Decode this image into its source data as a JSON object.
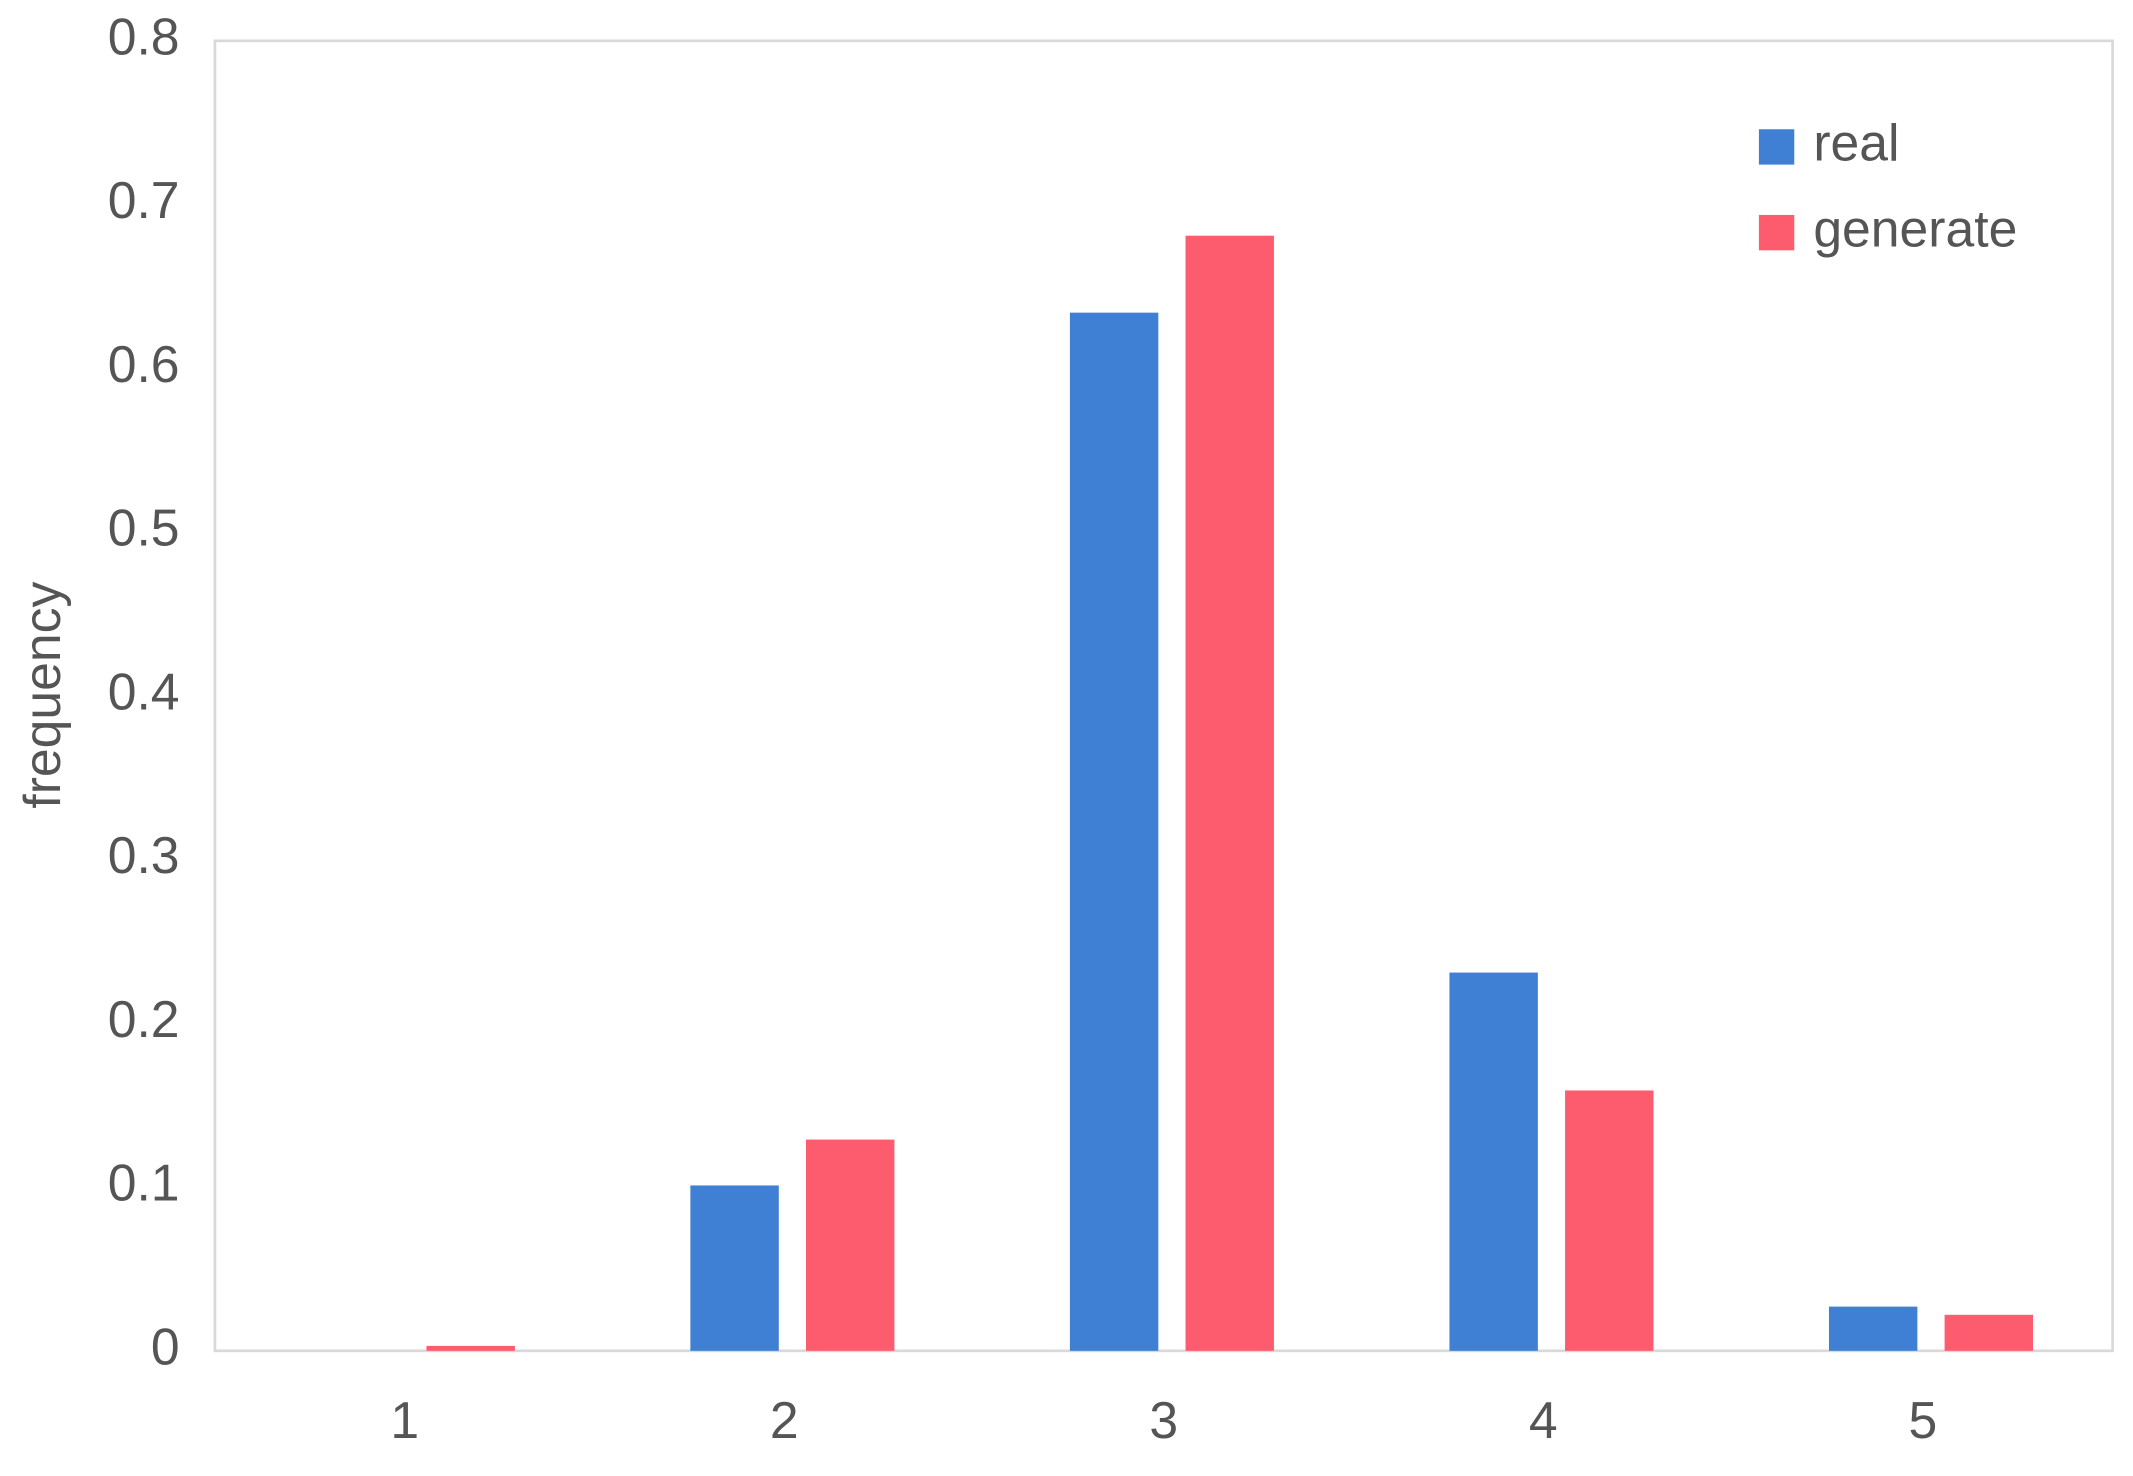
{
  "chart_data": {
    "type": "bar",
    "y_label": "frequency",
    "categories": [
      "1",
      "2",
      "3",
      "4",
      "5"
    ],
    "series": [
      {
        "name": "real",
        "color": "#4080d4",
        "values": [
          0,
          0.101,
          0.634,
          0.231,
          0.027
        ]
      },
      {
        "name": "generate",
        "color": "#fd5c6e",
        "values": [
          0.003,
          0.129,
          0.681,
          0.159,
          0.022
        ]
      }
    ],
    "ylim": [
      0,
      0.8
    ],
    "yticks": [
      0,
      0.1,
      0.2,
      0.3,
      0.4,
      0.5,
      0.6,
      0.7,
      0.8
    ],
    "grid": false,
    "legend": "upper right"
  }
}
